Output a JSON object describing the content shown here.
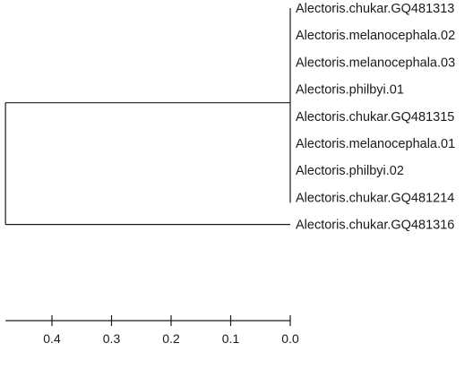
{
  "tree": {
    "tips": [
      "Alectoris.chukar.GQ481313",
      "Alectoris.melanocephala.02",
      "Alectoris.melanocephala.03",
      "Alectoris.philbyi.01",
      "Alectoris.chukar.GQ481315",
      "Alectoris.melanocephala.01",
      "Alectoris.philbyi.02",
      "Alectoris.chukar.GQ481214",
      "Alectoris.chukar.GQ481316"
    ],
    "clade_member_count": 8,
    "root_height": 0.478,
    "clade_height": 0.0,
    "outgroup_height": 0.0,
    "line_color": "#1a1a1a"
  },
  "axis": {
    "direction": "reversed",
    "range": [
      0.0,
      0.478
    ],
    "ticks": [
      0.4,
      0.3,
      0.2,
      0.1,
      0.0
    ],
    "tick_labels": [
      "0.4",
      "0.3",
      "0.2",
      "0.1",
      "0.0"
    ]
  }
}
